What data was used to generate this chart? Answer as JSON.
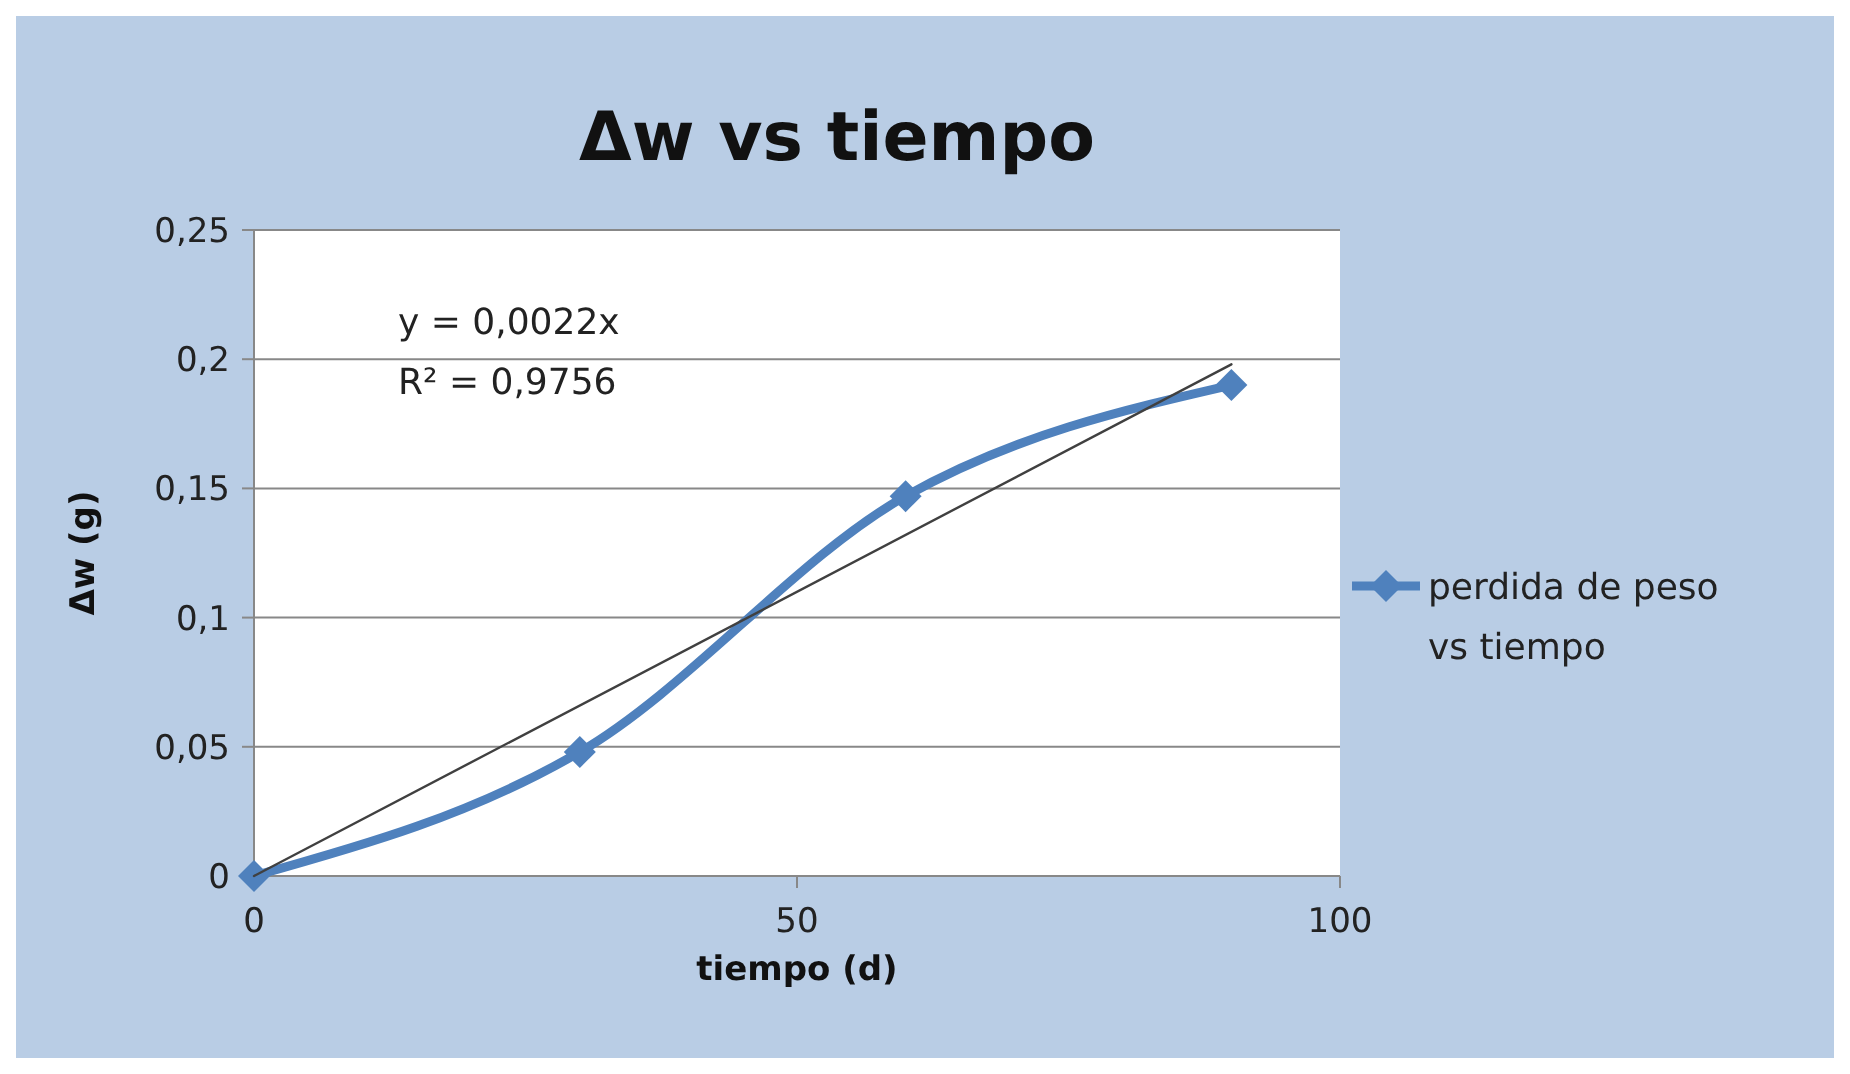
{
  "chart_data": {
    "type": "line",
    "title": "Δw vs tiempo",
    "xlabel": "tiempo (d)",
    "ylabel": "Δw (g)",
    "x": [
      0,
      30,
      60,
      90
    ],
    "series": [
      {
        "name": "perdida de peso vs tiempo",
        "color": "#4f81bd",
        "values": [
          0,
          0.048,
          0.147,
          0.19
        ],
        "marker": "diamond"
      },
      {
        "type": "line",
        "color": "#404040",
        "x": [
          0,
          90
        ],
        "values": [
          0,
          0.198
        ],
        "marker": "none"
      }
    ],
    "xlim": [
      0,
      100
    ],
    "xticks": [
      0,
      50,
      100
    ],
    "ylim": [
      0,
      0.25
    ],
    "yticks": [
      {
        "value": 0,
        "label": "0"
      },
      {
        "value": 0.05,
        "label": "0,05"
      },
      {
        "value": 0.1,
        "label": "0,1"
      },
      {
        "value": 0.15,
        "label": "0,15"
      },
      {
        "value": 0.2,
        "label": "0,2"
      },
      {
        "value": 0.25,
        "label": "0,25"
      }
    ],
    "annotations": [
      "y = 0,0022x",
      "R² = 0,9756"
    ],
    "grid": "y",
    "legend": "right",
    "line_style": "solid"
  }
}
